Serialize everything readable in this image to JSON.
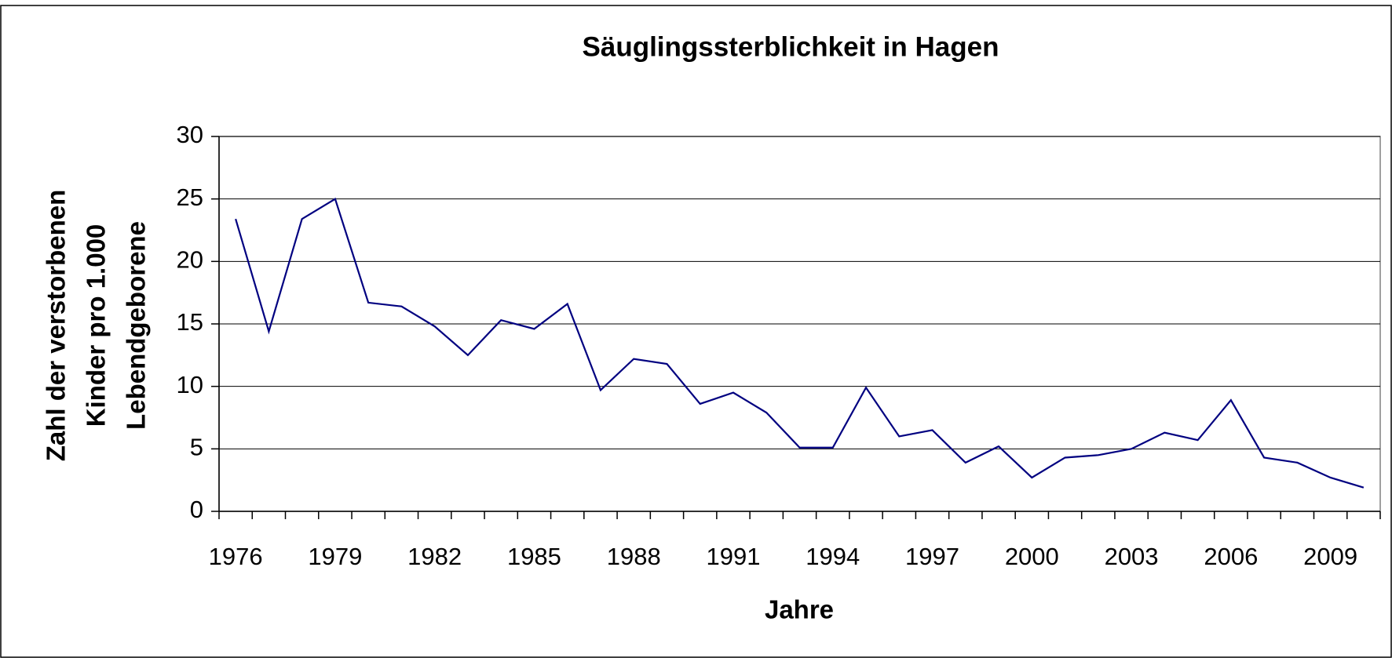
{
  "chart_data": {
    "type": "line",
    "title": "Säuglingssterblichkeit in Hagen",
    "x_label": "Jahre",
    "y_label": [
      "Zahl der verstorbenen",
      "Kinder pro 1.000",
      "Lebendgeborene"
    ],
    "categories": [
      "1976",
      null,
      null,
      "1979",
      null,
      null,
      "1982",
      null,
      null,
      "1985",
      null,
      null,
      "1988",
      null,
      null,
      "1991",
      null,
      null,
      "1994",
      null,
      null,
      "1997",
      null,
      null,
      "2000",
      null,
      null,
      "2003",
      null,
      null,
      "2006",
      null,
      null,
      "2009",
      null
    ],
    "series": [
      {
        "name": "Säuglingssterblichkeit",
        "color": "#000080",
        "values": [
          23.4,
          14.4,
          23.4,
          25.0,
          16.7,
          16.4,
          14.8,
          12.5,
          15.3,
          14.6,
          16.6,
          9.7,
          12.2,
          11.8,
          8.6,
          9.5,
          7.9,
          5.1,
          5.1,
          9.9,
          6.0,
          6.5,
          3.9,
          5.2,
          2.7,
          4.3,
          4.5,
          5.0,
          6.3,
          5.7,
          8.9,
          4.3,
          3.9,
          2.7,
          1.9
        ]
      }
    ],
    "ylim": [
      0,
      30
    ],
    "yticks": [
      0,
      5,
      10,
      15,
      20,
      25,
      30
    ],
    "grid": true
  }
}
